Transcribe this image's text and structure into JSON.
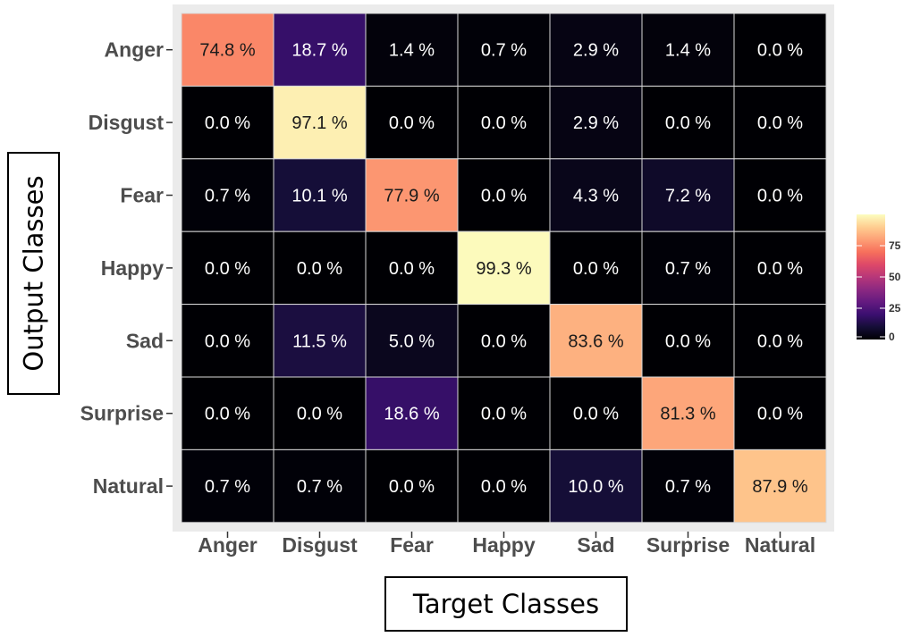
{
  "chart_data": {
    "type": "heatmap",
    "title": "",
    "xlabel": "Target Classes",
    "ylabel": "Output Classes",
    "x_categories": [
      "Anger",
      "Disgust",
      "Fear",
      "Happy",
      "Sad",
      "Surprise",
      "Natural"
    ],
    "y_categories": [
      "Anger",
      "Disgust",
      "Fear",
      "Happy",
      "Sad",
      "Surprise",
      "Natural"
    ],
    "values": [
      [
        74.8,
        18.7,
        1.4,
        0.7,
        2.9,
        1.4,
        0.0
      ],
      [
        0.0,
        97.1,
        0.0,
        0.0,
        2.9,
        0.0,
        0.0
      ],
      [
        0.7,
        10.1,
        77.9,
        0.0,
        4.3,
        7.2,
        0.0
      ],
      [
        0.0,
        0.0,
        0.0,
        99.3,
        0.0,
        0.7,
        0.0
      ],
      [
        0.0,
        11.5,
        5.0,
        0.0,
        83.6,
        0.0,
        0.0
      ],
      [
        0.0,
        0.0,
        18.6,
        0.0,
        0.0,
        81.3,
        0.0
      ],
      [
        0.7,
        0.7,
        0.0,
        0.0,
        10.0,
        0.7,
        87.9
      ]
    ],
    "value_suffix": " %",
    "colorscale": "magma",
    "color_range": [
      0,
      100
    ],
    "legend": {
      "position": "right",
      "ticks": [
        0,
        25,
        50,
        75
      ],
      "tick_labels": [
        "0",
        "25",
        "50",
        "75"
      ]
    },
    "grid": false
  },
  "colors": {
    "panel_background": "#ebebeb",
    "cell_border": "#d9d9d9",
    "label_text": "#4d4d4d"
  }
}
